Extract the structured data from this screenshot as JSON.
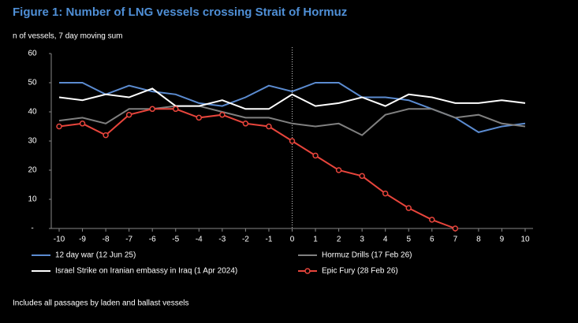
{
  "chart_data": {
    "type": "line",
    "title": "Figure 1: Number of LNG vessels crossing Strait of Hormuz",
    "subtitle": "n of vessels, 7 day moving sum",
    "footnote": "Includes all passages by laden and ballast vessels",
    "x": [
      -10,
      -9,
      -8,
      -7,
      -6,
      -5,
      -4,
      -3,
      -2,
      -1,
      0,
      1,
      2,
      3,
      4,
      5,
      6,
      7,
      8,
      9,
      10
    ],
    "xlim": [
      -10,
      10
    ],
    "xticks": [
      -10,
      -9,
      -8,
      -7,
      -6,
      -5,
      -4,
      -3,
      -2,
      -1,
      0,
      1,
      2,
      3,
      4,
      5,
      6,
      7,
      8,
      9,
      10
    ],
    "ylim": [
      0,
      60
    ],
    "yticks": [
      {
        "value": 0,
        "label": "-"
      },
      10,
      20,
      30,
      40,
      50,
      60
    ],
    "vline": 0,
    "series": [
      {
        "name": "12 day war (12 Jun 25)",
        "color": "#5b8bd0",
        "values": [
          50,
          50,
          46,
          49,
          47,
          46,
          43,
          42,
          45,
          49,
          47,
          50,
          50,
          45,
          45,
          44,
          41,
          38,
          33,
          35,
          36
        ]
      },
      {
        "name": "Hormuz Drills (17 Feb 26)",
        "color": "#808080",
        "values": [
          37,
          38,
          36,
          41,
          41,
          42,
          42,
          40,
          38,
          38,
          36,
          35,
          36,
          32,
          39,
          41,
          41,
          38,
          39,
          36,
          35
        ]
      },
      {
        "name": "Israel Strike on Iranian embassy in Iraq (1 Apr 2024)",
        "color": "#ffffff",
        "values": [
          45,
          44,
          46,
          45,
          48,
          42,
          42,
          44,
          41,
          41,
          46,
          42,
          43,
          45,
          42,
          46,
          45,
          43,
          43,
          44,
          43
        ]
      },
      {
        "name": "Epic Fury (28 Feb 26)",
        "color": "#e8453c",
        "markers": true,
        "values": [
          35,
          36,
          32,
          39,
          41,
          41,
          38,
          39,
          36,
          35,
          30,
          25,
          20,
          18,
          12,
          7,
          3,
          0,
          null,
          null,
          null
        ]
      }
    ]
  }
}
